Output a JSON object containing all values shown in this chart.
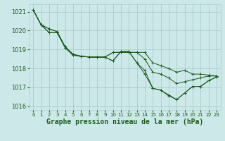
{
  "background_color": "#cce8e8",
  "grid_color": "#aacccc",
  "line_color": "#1a5c1a",
  "xlabel": "Graphe pression niveau de la mer (hPa)",
  "xlim": [
    -0.5,
    23.5
  ],
  "ylim": [
    1015.8,
    1021.4
  ],
  "yticks": [
    1016,
    1017,
    1018,
    1019,
    1020,
    1021
  ],
  "xticks": [
    0,
    1,
    2,
    3,
    4,
    5,
    6,
    7,
    8,
    9,
    10,
    11,
    12,
    13,
    14,
    15,
    16,
    17,
    18,
    19,
    20,
    21,
    22,
    23
  ],
  "series": [
    [
      1021.1,
      1020.3,
      1019.9,
      1019.9,
      1019.1,
      1018.7,
      1018.65,
      1018.6,
      1018.6,
      1018.6,
      1018.85,
      1018.85,
      1018.85,
      1018.85,
      1018.85,
      1018.3,
      1018.15,
      1018.0,
      1017.8,
      1017.9,
      1017.7,
      1017.7,
      1017.65,
      1017.6
    ],
    [
      1021.1,
      1020.3,
      1019.9,
      1019.9,
      1019.1,
      1018.7,
      1018.65,
      1018.6,
      1018.6,
      1018.6,
      1018.85,
      1018.85,
      1018.85,
      1018.85,
      1018.5,
      1017.8,
      1017.7,
      1017.5,
      1017.2,
      1017.3,
      1017.4,
      1017.5,
      1017.6,
      1017.6
    ],
    [
      1021.1,
      1020.3,
      1020.1,
      1019.95,
      1019.15,
      1018.75,
      1018.65,
      1018.6,
      1018.6,
      1018.6,
      1018.4,
      1018.9,
      1018.9,
      1018.3,
      1017.9,
      1016.95,
      1016.85,
      1016.55,
      1016.35,
      1016.7,
      1017.05,
      1017.05,
      1017.35,
      1017.55
    ],
    [
      1021.1,
      1020.3,
      1020.1,
      1019.95,
      1019.15,
      1018.75,
      1018.65,
      1018.6,
      1018.6,
      1018.6,
      1018.4,
      1018.9,
      1018.9,
      1018.3,
      1017.7,
      1016.95,
      1016.85,
      1016.6,
      1016.35,
      1016.7,
      1017.05,
      1017.05,
      1017.35,
      1017.55
    ]
  ]
}
